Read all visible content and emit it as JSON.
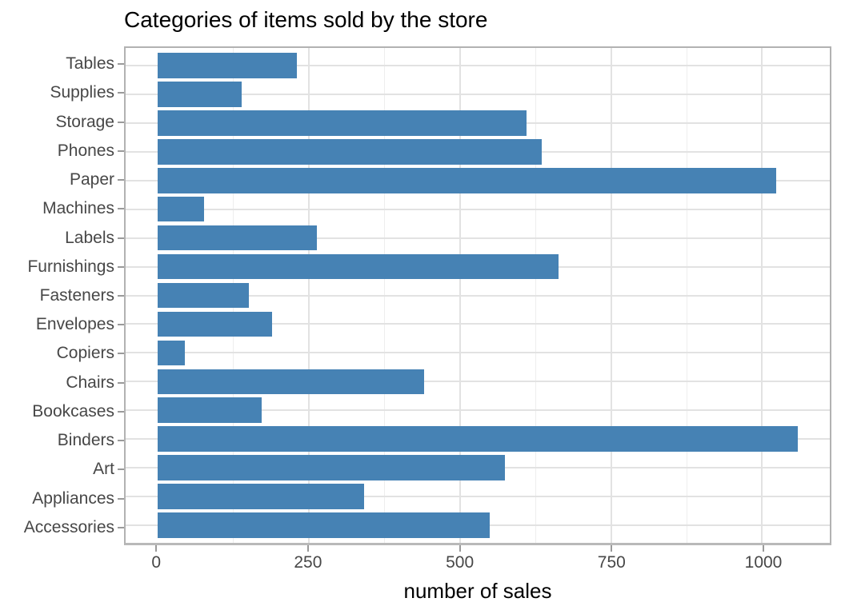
{
  "title": "Categories of items sold by the store",
  "chart_data": {
    "type": "bar",
    "orientation": "horizontal",
    "title": "Categories of items sold by the store",
    "xlabel": "number of sales",
    "ylabel": "",
    "categories_top_to_bottom": [
      "Tables",
      "Supplies",
      "Storage",
      "Phones",
      "Paper",
      "Machines",
      "Labels",
      "Furnishings",
      "Fasteners",
      "Envelopes",
      "Copiers",
      "Chairs",
      "Bookcases",
      "Binders",
      "Art",
      "Appliances",
      "Accessories"
    ],
    "values": [
      230,
      139,
      610,
      636,
      1023,
      77,
      264,
      663,
      151,
      189,
      45,
      441,
      172,
      1059,
      574,
      341,
      549
    ],
    "x_ticks": [
      0,
      250,
      500,
      750,
      1000
    ],
    "x_minor_gridlines": [
      125,
      375,
      625,
      875
    ],
    "xlim": [
      -53,
      1112
    ],
    "grid": true,
    "legend_position": "none",
    "bar_color": "#4682b4"
  },
  "colors": {
    "bar": "#4682b4",
    "grid_major": "#e2e2e2",
    "grid_minor": "#eeeeee",
    "panel_border": "#b2b2b2",
    "axis_line": "#b9b9b9",
    "tick_mark": "#9a9a9a",
    "tick_label": "#474747",
    "title": "#000000"
  }
}
